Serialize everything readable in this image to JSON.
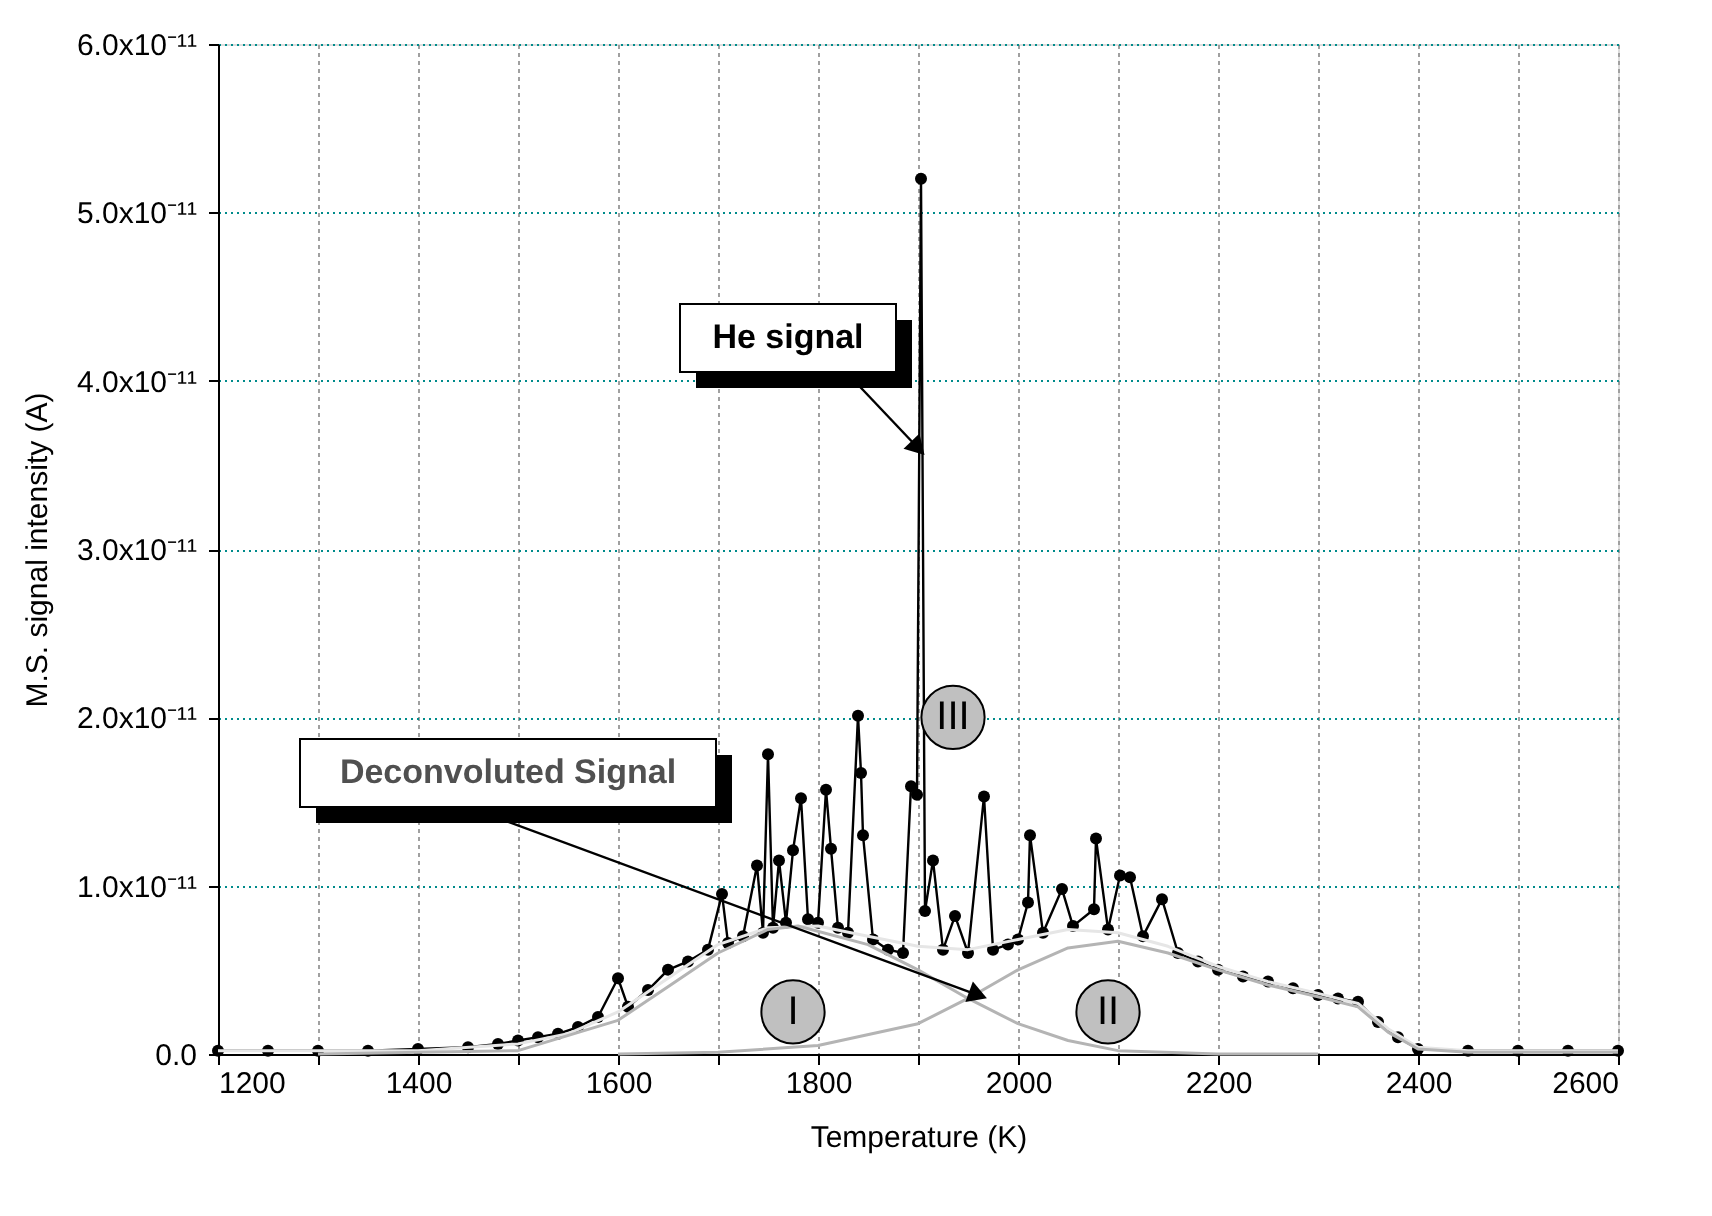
{
  "chart_data": {
    "type": "line",
    "xlabel": "Temperature (K)",
    "ylabel": "M.S. signal intensity (A)",
    "xlim": [
      1200,
      2600
    ],
    "ylim": [
      0,
      6e-11
    ],
    "xticks": [
      1200,
      {
        "value": 1300,
        "label": null
      },
      1400,
      {
        "value": 1500,
        "label": null
      },
      1600,
      {
        "value": 1700,
        "label": null
      },
      1800,
      {
        "value": 1900,
        "label": null
      },
      2000,
      {
        "value": 2100,
        "label": null
      },
      2200,
      {
        "value": 2300,
        "label": null
      },
      2400,
      {
        "value": 2500,
        "label": null
      },
      2600
    ],
    "yticks": [
      {
        "value": 0,
        "label": "0.0"
      },
      {
        "value": 1e-11,
        "label": "1.0x10⁻¹¹"
      },
      {
        "value": 2e-11,
        "label": "2.0x10⁻¹¹"
      },
      {
        "value": 3e-11,
        "label": "3.0x10⁻¹¹"
      },
      {
        "value": 4e-11,
        "label": "4.0x10⁻¹¹"
      },
      {
        "value": 5e-11,
        "label": "5.0x10⁻¹¹"
      },
      {
        "value": 6e-11,
        "label": "6.0x10⁻¹¹"
      }
    ],
    "grid": true,
    "legend": false,
    "series": [
      {
        "marker": "circle",
        "line_style": "solid",
        "color": "#000000",
        "x": [
          1200,
          1250,
          1300,
          1350,
          1400,
          1450,
          1480,
          1500,
          1520,
          1540,
          1560,
          1580,
          1600,
          1610,
          1630,
          1650,
          1670,
          1690,
          1704,
          1710,
          1725,
          1739,
          1745,
          1750,
          1755,
          1761,
          1768,
          1775,
          1783,
          1790,
          1800,
          1808,
          1813,
          1820,
          1830,
          1840,
          1843,
          1845,
          1855,
          1870,
          1885,
          1893,
          1899,
          1903,
          1907,
          1915,
          1925,
          1937,
          1950,
          1966,
          1975,
          1990,
          2000,
          2010,
          2012,
          2025,
          2044,
          2055,
          2076,
          2078,
          2090,
          2102,
          2112,
          2125,
          2144,
          2160,
          2180,
          2200,
          2225,
          2250,
          2275,
          2300,
          2320,
          2340,
          2360,
          2380,
          2400,
          2450,
          2500,
          2550,
          2600
        ],
        "values": [
          2e-13,
          2e-13,
          2e-13,
          2e-13,
          3e-13,
          4e-13,
          6e-13,
          8e-13,
          1e-12,
          1.2e-12,
          1.6e-12,
          2.2e-12,
          4.5e-12,
          2.8e-12,
          3.8e-12,
          5e-12,
          5.5e-12,
          6.2e-12,
          9.5e-12,
          6.6e-12,
          7e-12,
          1.12e-11,
          7.2e-12,
          1.78e-11,
          7.5e-12,
          1.15e-11,
          7.8e-12,
          1.21e-11,
          1.52e-11,
          8e-12,
          7.8e-12,
          1.57e-11,
          1.22e-11,
          7.5e-12,
          7.2e-12,
          2.01e-11,
          1.67e-11,
          1.3e-11,
          6.8e-12,
          6.2e-12,
          6e-12,
          1.59e-11,
          1.54e-11,
          5.2e-11,
          8.5e-12,
          1.15e-11,
          6.2e-12,
          8.2e-12,
          6e-12,
          1.53e-11,
          6.2e-12,
          6.5e-12,
          6.8e-12,
          9e-12,
          1.3e-11,
          7.2e-12,
          9.8e-12,
          7.6e-12,
          8.6e-12,
          1.28e-11,
          7.4e-12,
          1.06e-11,
          1.05e-11,
          7e-12,
          9.2e-12,
          6e-12,
          5.5e-12,
          5e-12,
          4.6e-12,
          4.3e-12,
          3.9e-12,
          3.5e-12,
          3.3e-12,
          3.1e-12,
          1.9e-12,
          1e-12,
          3e-13,
          2e-13,
          2e-13,
          2e-13,
          2e-13
        ]
      },
      {
        "marker": "none",
        "line_style": "solid",
        "color": "#e6e6e6",
        "x": [
          1200,
          1400,
          1500,
          1550,
          1600,
          1650,
          1700,
          1750,
          1800,
          1850,
          1900,
          1950,
          2000,
          2050,
          2100,
          2150,
          2200,
          2250,
          2300,
          2340,
          2370,
          2400,
          2450,
          2600
        ],
        "values": [
          2e-13,
          2e-13,
          6e-13,
          1.2e-12,
          2.5e-12,
          4.5e-12,
          6.5e-12,
          7.5e-12,
          7.6e-12,
          7e-12,
          6.4e-12,
          6.2e-12,
          6.8e-12,
          7.4e-12,
          7.2e-12,
          6.4e-12,
          5.2e-12,
          4.3e-12,
          3.6e-12,
          3e-12,
          1.5e-12,
          4e-13,
          2e-13,
          2e-13
        ]
      },
      {
        "marker": "none",
        "line_style": "solid",
        "color": "#b4b4b4",
        "x": [
          1300,
          1500,
          1600,
          1650,
          1700,
          1750,
          1780,
          1850,
          1900,
          1950,
          2000,
          2050,
          2100,
          2200,
          2300
        ],
        "values": [
          0,
          2e-13,
          2e-12,
          4e-12,
          6e-12,
          7.4e-12,
          7.6e-12,
          6.5e-12,
          5e-12,
          3.3e-12,
          1.8e-12,
          8e-13,
          2e-13,
          0,
          0
        ]
      },
      {
        "marker": "none",
        "line_style": "solid",
        "color": "#b4b4b4",
        "x": [
          1600,
          1700,
          1800,
          1900,
          1950,
          2000,
          2050,
          2100,
          2150,
          2200,
          2250,
          2300,
          2340,
          2370,
          2400,
          2450,
          2600
        ],
        "values": [
          0,
          1e-13,
          5e-13,
          1.8e-12,
          3.3e-12,
          5e-12,
          6.3e-12,
          6.7e-12,
          6e-12,
          5e-12,
          4.1e-12,
          3.4e-12,
          2.8e-12,
          1.3e-12,
          3e-13,
          1e-13,
          1e-13
        ]
      }
    ],
    "annotations": [
      {
        "text": "He signal",
        "x": 1900,
        "y": 3.6e-11
      },
      {
        "text": "Deconvoluted Signal",
        "x": 1960,
        "y": 3.5e-12
      },
      {
        "text": "I",
        "x": 1775,
        "y": 2.5e-12
      },
      {
        "text": "II",
        "x": 2090,
        "y": 2.5e-12
      },
      {
        "text": "III",
        "x": 1935,
        "y": 2e-11
      }
    ]
  }
}
